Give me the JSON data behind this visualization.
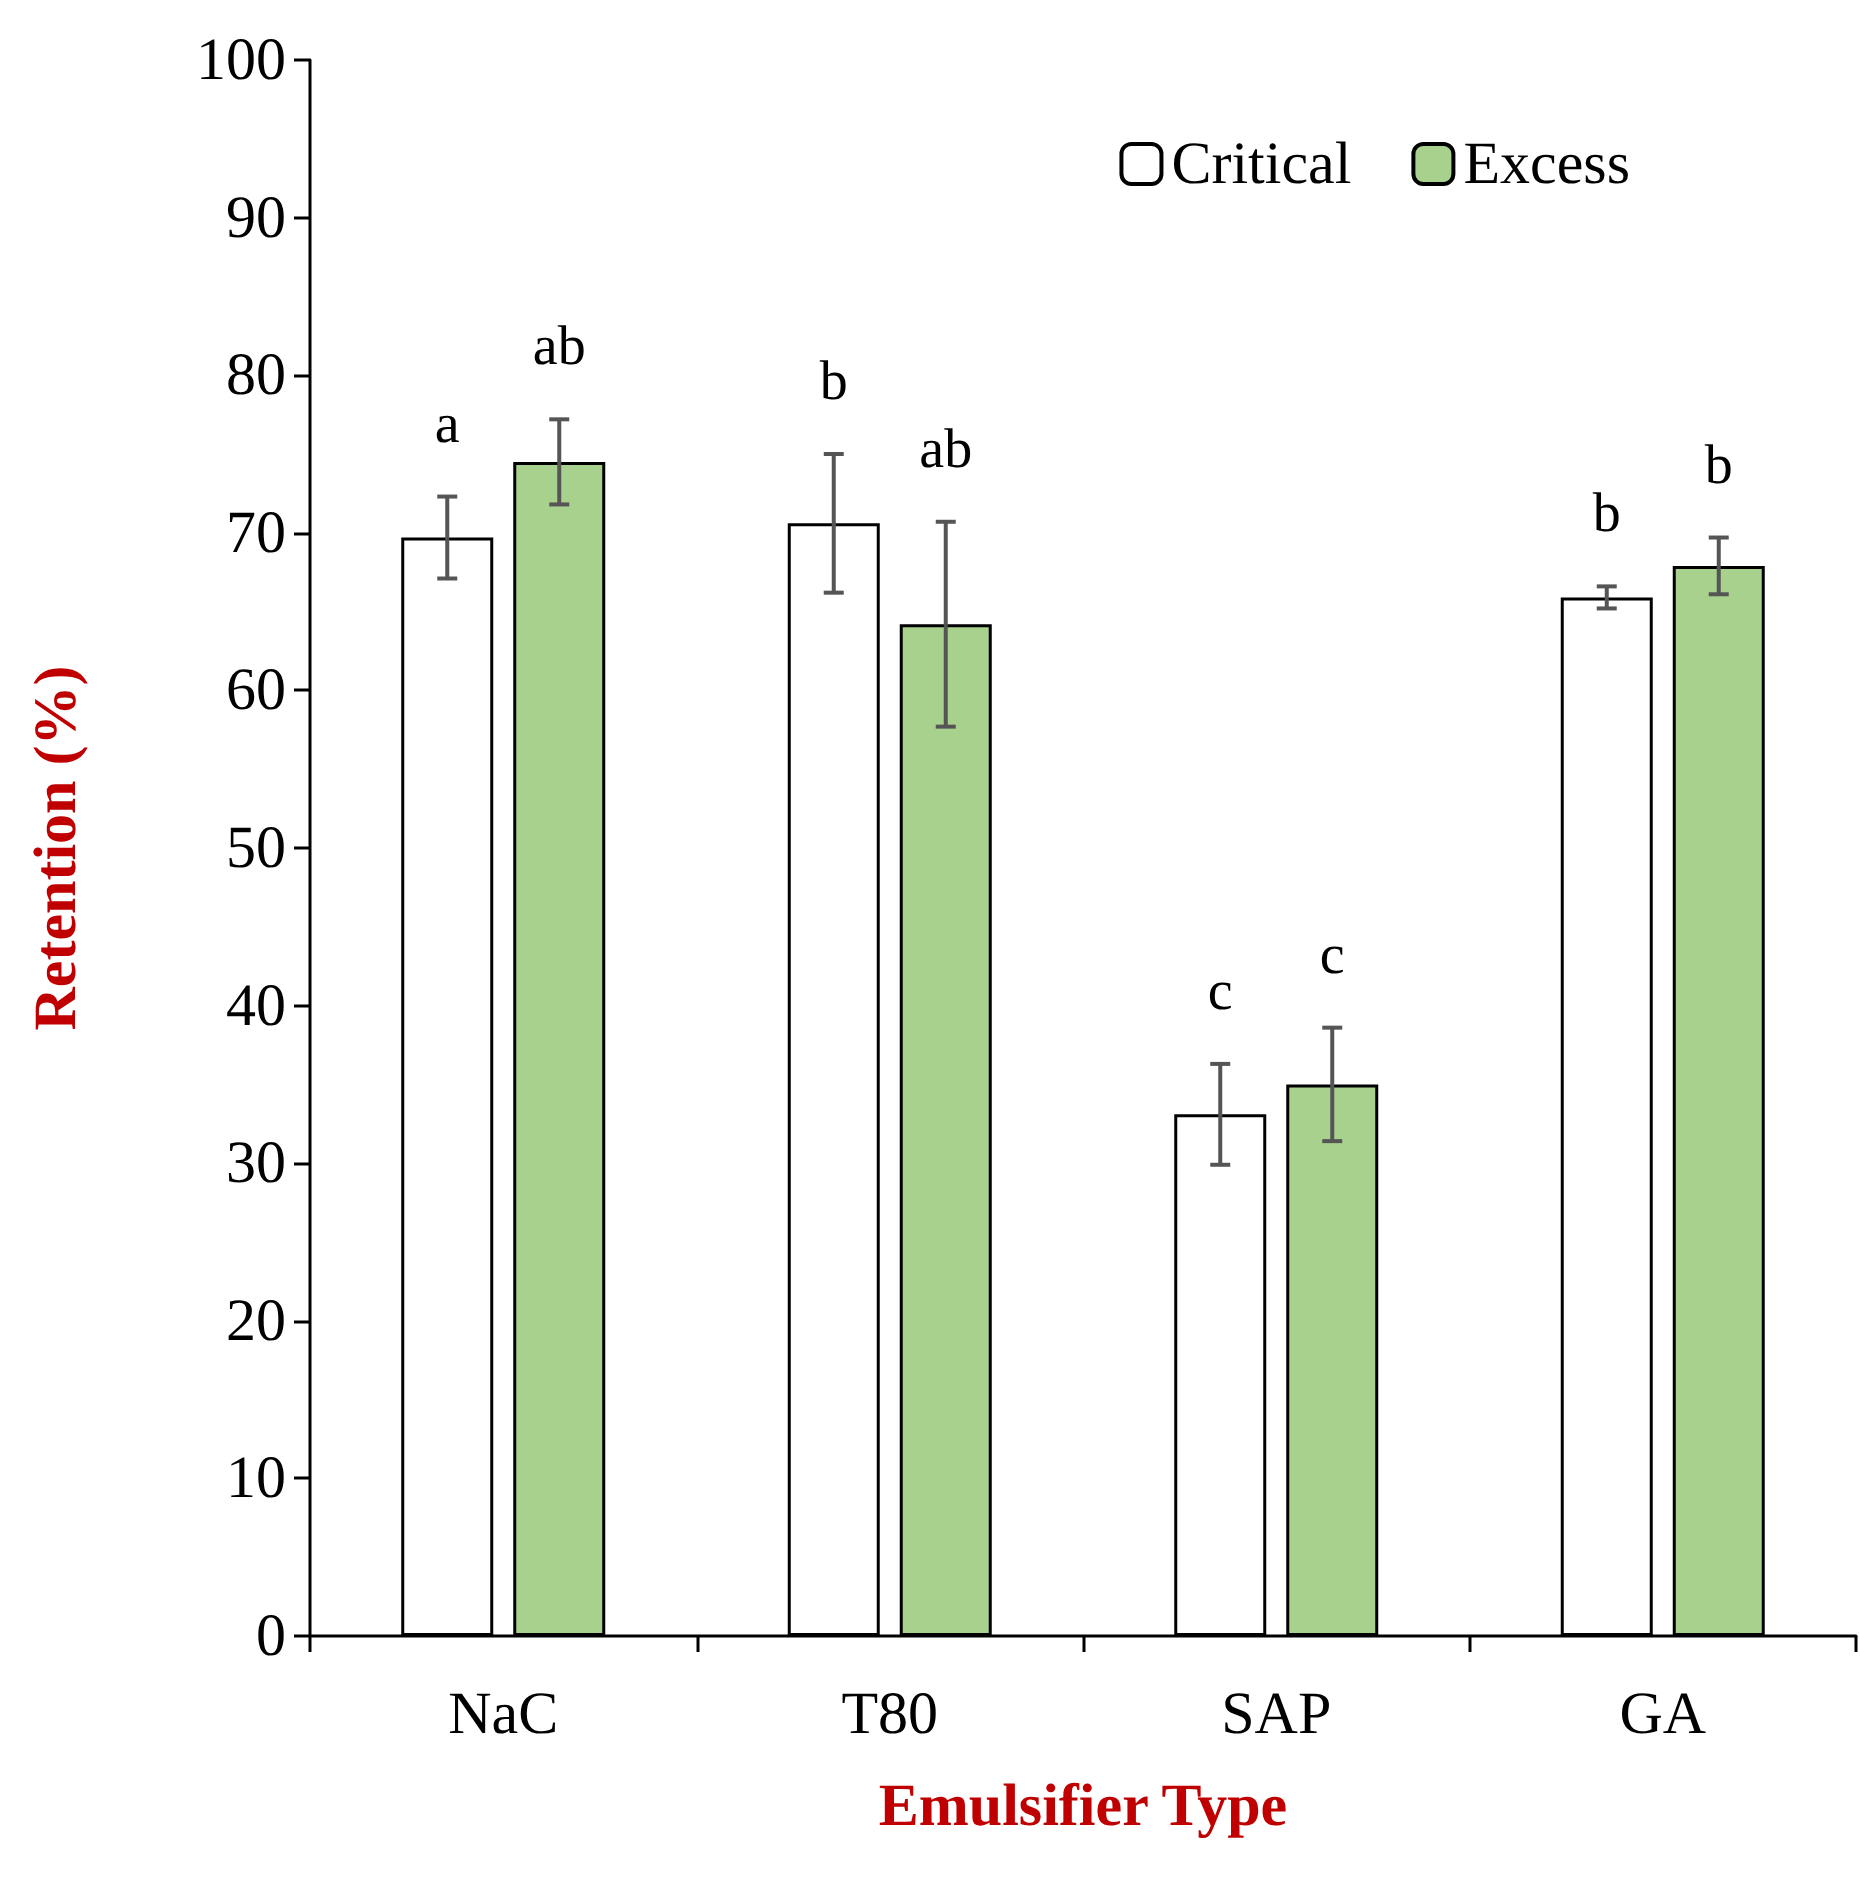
{
  "chart_data": {
    "type": "bar",
    "xlabel": "Emulsifier Type",
    "ylabel": "Retention (%)",
    "categories": [
      "NaC",
      "T80",
      "SAP",
      "GA"
    ],
    "series": [
      {
        "name": "Critical",
        "color": "#ffffff",
        "values": [
          69.7,
          70.6,
          33.1,
          65.9
        ],
        "errors": [
          2.6,
          4.4,
          3.2,
          0.7
        ],
        "value_labels": [
          "a",
          "b",
          "c",
          "b"
        ]
      },
      {
        "name": "Excess",
        "color": "#a9d18e",
        "values": [
          74.5,
          64.2,
          35.0,
          67.9
        ],
        "errors": [
          2.7,
          6.5,
          3.6,
          1.8
        ],
        "value_labels": [
          "ab",
          "ab",
          "c",
          "b"
        ]
      }
    ],
    "ylim": [
      0,
      100
    ],
    "yticks": [
      0,
      10,
      20,
      30,
      40,
      50,
      60,
      70,
      80,
      90,
      100
    ],
    "grid": false,
    "legend": "top right"
  }
}
